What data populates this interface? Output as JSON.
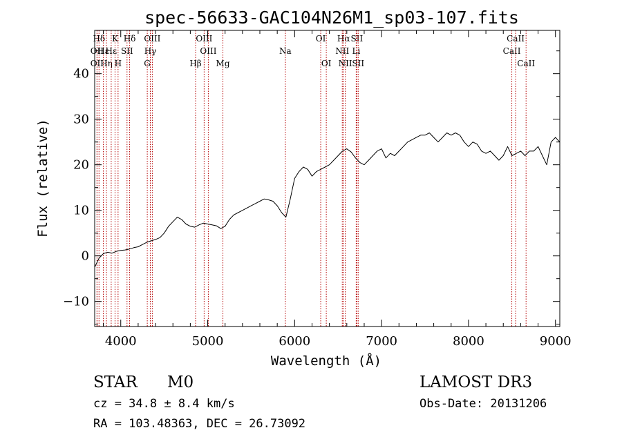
{
  "colors": {
    "axis": "#000000",
    "spectrum": "#000000",
    "line_marker": "#b40000",
    "background": "#ffffff"
  },
  "chart_data": {
    "type": "line",
    "title": "spec-56633-GAC104N26M1_sp03-107.fits",
    "xlabel": "Wavelength (Å)",
    "ylabel": "Flux (relative)",
    "xlim": [
      3700,
      9050
    ],
    "ylim": [
      -15.5,
      49.5
    ],
    "grid": false,
    "x_ticks": [
      4000,
      5000,
      6000,
      7000,
      8000,
      9000
    ],
    "x_tick_labels": [
      "4000",
      "5000",
      "6000",
      "7000",
      "8000",
      "9000"
    ],
    "y_ticks": [
      -10,
      0,
      10,
      20,
      30,
      40
    ],
    "y_tick_labels": [
      "−10",
      "0",
      "10",
      "20",
      "30",
      "40"
    ],
    "series": [
      {
        "points": [
          [
            3700,
            -2.5
          ],
          [
            3750,
            -0.5
          ],
          [
            3800,
            0.5
          ],
          [
            3850,
            0.8
          ],
          [
            3900,
            0.6
          ],
          [
            3950,
            1.0
          ],
          [
            4000,
            1.2
          ],
          [
            4050,
            1.3
          ],
          [
            4100,
            1.5
          ],
          [
            4150,
            1.8
          ],
          [
            4200,
            2.0
          ],
          [
            4250,
            2.5
          ],
          [
            4300,
            3.0
          ],
          [
            4350,
            3.3
          ],
          [
            4400,
            3.6
          ],
          [
            4450,
            4.0
          ],
          [
            4500,
            5.0
          ],
          [
            4550,
            6.5
          ],
          [
            4600,
            7.5
          ],
          [
            4650,
            8.5
          ],
          [
            4700,
            8.0
          ],
          [
            4750,
            7.0
          ],
          [
            4800,
            6.5
          ],
          [
            4850,
            6.3
          ],
          [
            4900,
            6.8
          ],
          [
            4950,
            7.2
          ],
          [
            5000,
            7.0
          ],
          [
            5050,
            6.8
          ],
          [
            5100,
            6.6
          ],
          [
            5150,
            6.0
          ],
          [
            5200,
            6.5
          ],
          [
            5250,
            8.0
          ],
          [
            5300,
            9.0
          ],
          [
            5350,
            9.5
          ],
          [
            5400,
            10.0
          ],
          [
            5450,
            10.5
          ],
          [
            5500,
            11.0
          ],
          [
            5550,
            11.5
          ],
          [
            5600,
            12.0
          ],
          [
            5650,
            12.5
          ],
          [
            5700,
            12.3
          ],
          [
            5750,
            12.0
          ],
          [
            5800,
            11.0
          ],
          [
            5850,
            9.5
          ],
          [
            5900,
            8.5
          ],
          [
            5950,
            12.5
          ],
          [
            6000,
            17.0
          ],
          [
            6050,
            18.5
          ],
          [
            6100,
            19.5
          ],
          [
            6150,
            19.0
          ],
          [
            6200,
            17.5
          ],
          [
            6250,
            18.5
          ],
          [
            6300,
            19.0
          ],
          [
            6350,
            19.5
          ],
          [
            6400,
            20.0
          ],
          [
            6450,
            21.0
          ],
          [
            6500,
            22.0
          ],
          [
            6550,
            23.0
          ],
          [
            6600,
            23.5
          ],
          [
            6650,
            22.8
          ],
          [
            6700,
            21.5
          ],
          [
            6750,
            20.5
          ],
          [
            6800,
            20.0
          ],
          [
            6850,
            21.0
          ],
          [
            6900,
            22.0
          ],
          [
            6950,
            23.0
          ],
          [
            7000,
            23.5
          ],
          [
            7050,
            21.5
          ],
          [
            7100,
            22.5
          ],
          [
            7150,
            22.0
          ],
          [
            7200,
            23.0
          ],
          [
            7250,
            24.0
          ],
          [
            7300,
            25.0
          ],
          [
            7350,
            25.5
          ],
          [
            7400,
            26.0
          ],
          [
            7450,
            26.5
          ],
          [
            7500,
            26.5
          ],
          [
            7550,
            27.0
          ],
          [
            7600,
            26.0
          ],
          [
            7650,
            25.0
          ],
          [
            7700,
            26.0
          ],
          [
            7750,
            27.0
          ],
          [
            7800,
            26.5
          ],
          [
            7850,
            27.0
          ],
          [
            7900,
            26.5
          ],
          [
            7950,
            25.0
          ],
          [
            8000,
            24.0
          ],
          [
            8050,
            25.0
          ],
          [
            8100,
            24.5
          ],
          [
            8150,
            23.0
          ],
          [
            8200,
            22.5
          ],
          [
            8250,
            23.0
          ],
          [
            8300,
            22.0
          ],
          [
            8350,
            21.0
          ],
          [
            8400,
            22.0
          ],
          [
            8450,
            24.0
          ],
          [
            8500,
            22.0
          ],
          [
            8550,
            22.5
          ],
          [
            8600,
            23.0
          ],
          [
            8650,
            22.0
          ],
          [
            8700,
            23.0
          ],
          [
            8750,
            23.0
          ],
          [
            8800,
            24.0
          ],
          [
            8850,
            22.0
          ],
          [
            8900,
            20.0
          ],
          [
            8950,
            25.0
          ],
          [
            9000,
            26.0
          ],
          [
            9050,
            25.0
          ]
        ]
      }
    ],
    "line_markers": [
      {
        "label": "Hδ",
        "wavelength": 3750,
        "row": 0
      },
      {
        "label": "OII",
        "wavelength": 3727,
        "row": 1
      },
      {
        "label": "OII",
        "wavelength": 3727,
        "row": 2
      },
      {
        "label": "Hε",
        "wavelength": 3800,
        "row": 1
      },
      {
        "label": "Hη",
        "wavelength": 3835,
        "row": 2
      },
      {
        "label": "Hε",
        "wavelength": 3890,
        "row": 1
      },
      {
        "label": "K",
        "wavelength": 3934,
        "row": 0
      },
      {
        "label": "H",
        "wavelength": 3969,
        "row": 2
      },
      {
        "label": "SII",
        "wavelength": 4072,
        "row": 1
      },
      {
        "label": "Hδ",
        "wavelength": 4102,
        "row": 0
      },
      {
        "label": "OIII",
        "wavelength": 4363,
        "row": 0
      },
      {
        "label": "Hγ",
        "wavelength": 4340,
        "row": 1
      },
      {
        "label": "G",
        "wavelength": 4305,
        "row": 2
      },
      {
        "label": "Hβ",
        "wavelength": 4861,
        "row": 2
      },
      {
        "label": "OIII",
        "wavelength": 4959,
        "row": 0
      },
      {
        "label": "OIII",
        "wavelength": 5007,
        "row": 1
      },
      {
        "label": "Mg",
        "wavelength": 5175,
        "row": 2
      },
      {
        "label": "Na",
        "wavelength": 5893,
        "row": 1
      },
      {
        "label": "OI",
        "wavelength": 6300,
        "row": 0
      },
      {
        "label": "OI",
        "wavelength": 6364,
        "row": 2
      },
      {
        "label": "Hα",
        "wavelength": 6563,
        "row": 0
      },
      {
        "label": "NII",
        "wavelength": 6548,
        "row": 1
      },
      {
        "label": "NII",
        "wavelength": 6583,
        "row": 2
      },
      {
        "label": "SII",
        "wavelength": 6716,
        "row": 0
      },
      {
        "label": "Li",
        "wavelength": 6708,
        "row": 1
      },
      {
        "label": "SII",
        "wavelength": 6731,
        "row": 2
      },
      {
        "label": "CaII",
        "wavelength": 8498,
        "row": 1
      },
      {
        "label": "CaII",
        "wavelength": 8542,
        "row": 0
      },
      {
        "label": "CaII",
        "wavelength": 8662,
        "row": 2
      }
    ]
  },
  "info": {
    "class": "STAR",
    "subclass": "M0",
    "survey": "LAMOST DR3",
    "cz": "cz = 34.8 ± 8.4 km/s",
    "obs_date": "Obs-Date: 20131206",
    "coords": "RA = 103.48363, DEC =  26.73092"
  }
}
